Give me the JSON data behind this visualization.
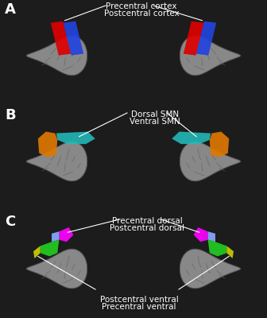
{
  "background_color": "#1c1c1c",
  "panel_label_fontsize": 13,
  "panel_A": {
    "labels": [
      "Precentral cortex",
      "Postcentral cortex"
    ],
    "precentral_color": "#dd0000",
    "postcentral_color": "#2244dd"
  },
  "panel_B": {
    "labels": [
      "Dorsal SMN",
      "Ventral SMN"
    ],
    "dorsal_color": "#22bbbb",
    "ventral_color": "#dd7700"
  },
  "panel_C": {
    "labels": [
      "Precentral dorsal",
      "Postcentral dorsal",
      "Postcentral ventral",
      "Precentral ventral"
    ],
    "prec_dorsal_color": "#ff00ff",
    "postc_dorsal_color": "#88aaff",
    "postc_ventral_color": "#cccc00",
    "prec_ventral_color": "#22cc22"
  },
  "brain_fill": "#888888",
  "brain_edge": "#555555",
  "sulci_color": "#606060",
  "text_color": "white",
  "line_color": "white"
}
